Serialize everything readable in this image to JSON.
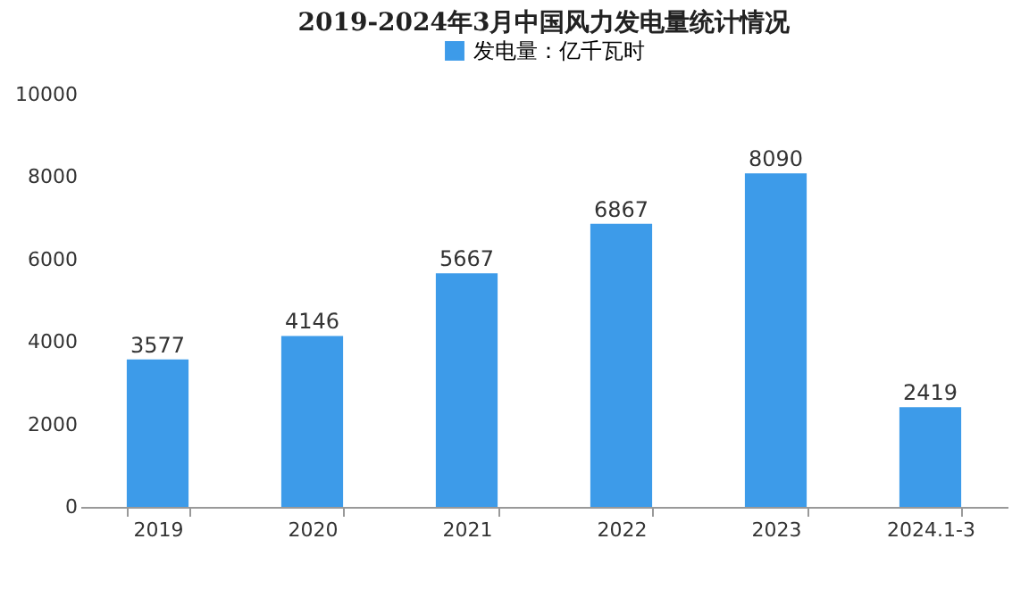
{
  "chart_data": {
    "type": "bar",
    "title": "2019-2024年3月中国风力发电量统计情况",
    "categories": [
      "2019",
      "2020",
      "2021",
      "2022",
      "2023",
      "2024.1-3"
    ],
    "series": [
      {
        "name": "发电量：亿千瓦时",
        "color": "#3d9be9",
        "values": [
          3577,
          4146,
          5667,
          6867,
          8090,
          2419
        ]
      }
    ],
    "ylim": [
      0,
      10000
    ],
    "yticks": [
      0,
      2000,
      4000,
      6000,
      8000,
      10000
    ],
    "data_labels": true,
    "legend": "top",
    "grid": false
  }
}
